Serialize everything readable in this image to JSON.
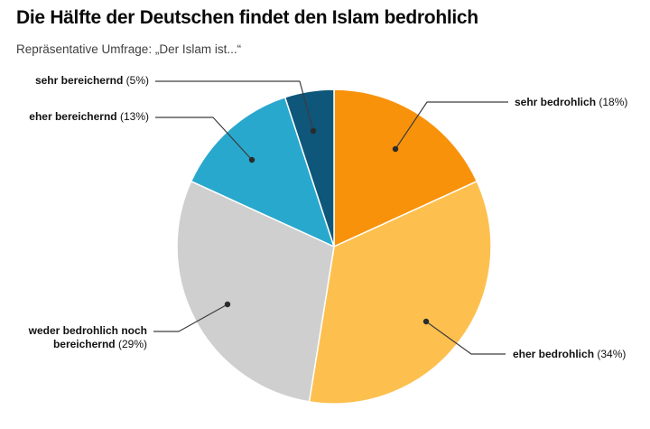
{
  "header": {
    "title": "Die Hälfte der Deutschen findet den Islam bedrohlich",
    "subtitle": "Repräsentative Umfrage: „Der Islam ist...“"
  },
  "chart_data": {
    "type": "pie",
    "title": "Die Hälfte der Deutschen findet den Islam bedrohlich",
    "subtitle": "Repräsentative Umfrage: „Der Islam ist...“",
    "start_angle_deg": 0,
    "direction": "clockwise",
    "legend_position": "callout-labels",
    "slice_border_color": "#ffffff",
    "leader_line_color": "#3d3d3d",
    "slices": [
      {
        "label": "sehr bedrohlich",
        "value_pct": 18,
        "pct_label": "(18%)",
        "color": "#F8920A"
      },
      {
        "label": "eher bedrohlich",
        "value_pct": 34,
        "pct_label": "(34%)",
        "color": "#FDC04F"
      },
      {
        "label": "weder bedrohlich noch bereichernd",
        "value_pct": 29,
        "pct_label": "(29%)",
        "color": "#CFCFCF"
      },
      {
        "label": "eher bereichernd",
        "value_pct": 13,
        "pct_label": "(13%)",
        "color": "#29A8CE"
      },
      {
        "label": "sehr bereichernd",
        "value_pct": 5,
        "pct_label": "(5%)",
        "color": "#0E567A"
      }
    ]
  }
}
